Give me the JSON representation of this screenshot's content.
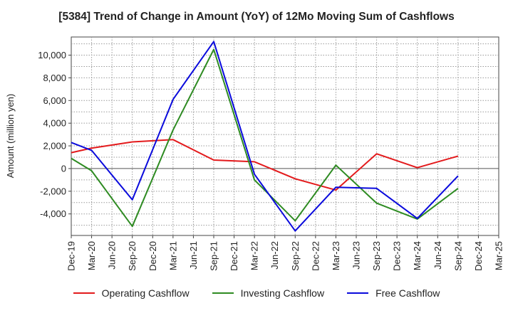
{
  "chart_data": {
    "type": "line",
    "title": "[5384]  Trend of Change in Amount (YoY) of 12Mo Moving Sum of Cashflows",
    "xlabel": "",
    "ylabel": "Amount (million yen)",
    "categories": [
      "Dec-19",
      "Mar-20",
      "Jun-20",
      "Sep-20",
      "Dec-20",
      "Mar-21",
      "Jun-21",
      "Sep-21",
      "Dec-21",
      "Mar-22",
      "Jun-22",
      "Sep-22",
      "Dec-22",
      "Mar-23",
      "Jun-23",
      "Sep-23",
      "Dec-23",
      "Mar-24",
      "Jun-24",
      "Sep-24",
      "Dec-24",
      "Mar-25"
    ],
    "ylim": [
      -5900,
      11600
    ],
    "yticks": [
      -4000,
      -2000,
      0,
      2000,
      4000,
      6000,
      8000,
      10000
    ],
    "ytick_labels": [
      "-4,000",
      "-2,000",
      "0",
      "2,000",
      "4,000",
      "6,000",
      "8,000",
      "10,000"
    ],
    "grid": true,
    "legend_position": "bottom",
    "series": [
      {
        "name": "Operating Cashflow",
        "color": "#e31a1c",
        "values": [
          1400,
          1800,
          null,
          2350,
          null,
          2550,
          null,
          750,
          null,
          600,
          null,
          -900,
          null,
          -1900,
          null,
          1300,
          null,
          80,
          null,
          1100,
          null,
          null
        ]
      },
      {
        "name": "Investing Cashflow",
        "color": "#2e8b22",
        "values": [
          900,
          -200,
          null,
          -5100,
          null,
          3400,
          null,
          10500,
          null,
          -1000,
          null,
          -4600,
          null,
          300,
          null,
          -3050,
          null,
          -4450,
          null,
          -1750,
          null,
          null
        ]
      },
      {
        "name": "Free Cashflow",
        "color": "#0a0adc",
        "values": [
          2300,
          1600,
          null,
          -2750,
          null,
          6100,
          null,
          11200,
          null,
          -500,
          null,
          -5500,
          null,
          -1650,
          null,
          -1750,
          null,
          -4400,
          null,
          -650,
          null,
          null
        ]
      }
    ]
  }
}
